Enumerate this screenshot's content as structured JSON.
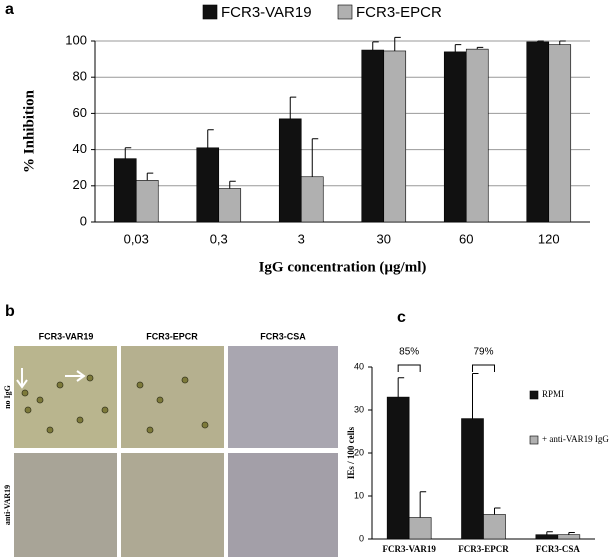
{
  "panel_labels": [
    "a",
    "b",
    "c"
  ],
  "chart_data": [
    {
      "type": "bar",
      "x_label": "IgG concentration (µg/ml)",
      "y_label": "% Inhibition",
      "categories": [
        "0,03",
        "0,3",
        "3",
        "30",
        "60",
        "120"
      ],
      "series": [
        {
          "name": "FCR3-VAR19",
          "color": "#111111",
          "values": [
            35,
            41,
            57,
            95,
            94,
            99.5
          ],
          "errors": [
            6,
            10,
            12,
            4.5,
            4,
            0.5
          ]
        },
        {
          "name": "FCR3-EPCR",
          "color": "#b0b0b0",
          "values": [
            23,
            18.5,
            25,
            94.5,
            95.5,
            98
          ],
          "errors": [
            4,
            4,
            21,
            7.5,
            1,
            2
          ]
        }
      ],
      "ylim": [
        0,
        100
      ],
      "yticks": [
        0,
        20,
        40,
        60,
        80,
        100
      ],
      "grid": true,
      "legend": "top"
    },
    {
      "type": "bar",
      "y_label": "IEs / 100 cells",
      "categories": [
        "FCR3-VAR19",
        "FCR3-EPCR",
        "FCR3-CSA"
      ],
      "series": [
        {
          "name": "RPMI",
          "color": "#111111",
          "values": [
            33,
            28,
            1
          ],
          "errors": [
            4.5,
            10.5,
            0.7
          ]
        },
        {
          "name": "+ anti-VAR19 IgG",
          "color": "#b0b0b0",
          "values": [
            5,
            5.7,
            1
          ],
          "errors": [
            6,
            1.5,
            0.5
          ]
        }
      ],
      "annotations": [
        "85%",
        "79%"
      ],
      "ylim": [
        0,
        40
      ],
      "yticks": [
        0,
        10,
        20,
        30,
        40
      ],
      "grid": false,
      "legend": "right"
    }
  ],
  "micrographs": {
    "columns": [
      "FCR3-VAR19",
      "FCR3-EPCR",
      "FCR3-CSA"
    ],
    "rows": [
      "no IgG",
      "anti-VAR19"
    ]
  }
}
